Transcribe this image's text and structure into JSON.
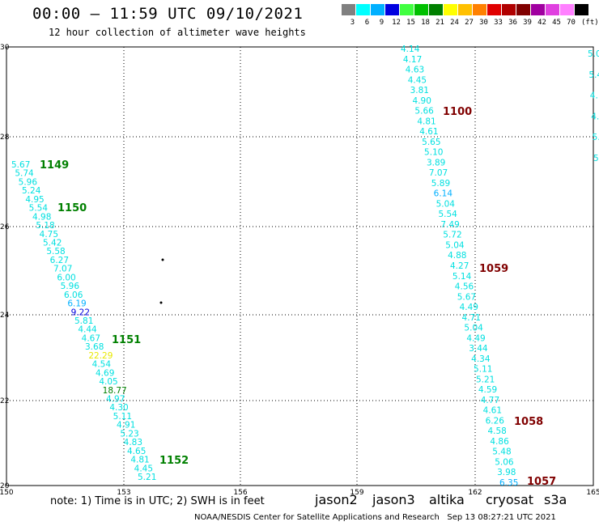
{
  "header": {
    "title": "00:00 – 11:59 UTC 09/10/2021",
    "subtitle": "12 hour collection of altimeter wave heights"
  },
  "legend": {
    "unit": "(ft)",
    "bins": [
      {
        "label": "3",
        "color": "#808080"
      },
      {
        "label": "6",
        "color": "#00ffff"
      },
      {
        "label": "9",
        "color": "#00b0ff"
      },
      {
        "label": "12",
        "color": "#0000e0"
      },
      {
        "label": "15",
        "color": "#40ff40"
      },
      {
        "label": "18",
        "color": "#00c000"
      },
      {
        "label": "21",
        "color": "#008000"
      },
      {
        "label": "24",
        "color": "#ffff00"
      },
      {
        "label": "27",
        "color": "#ffc000"
      },
      {
        "label": "30",
        "color": "#ff8000"
      },
      {
        "label": "33",
        "color": "#e00000"
      },
      {
        "label": "36",
        "color": "#b00000"
      },
      {
        "label": "39",
        "color": "#800000"
      },
      {
        "label": "42",
        "color": "#a000a0"
      },
      {
        "label": "45",
        "color": "#e040e0"
      },
      {
        "label": "70",
        "color": "#ff80ff"
      },
      {
        "label": "",
        "color": "#000000"
      }
    ]
  },
  "axes": {
    "lon_labels": [
      "150",
      "153",
      "156",
      "159",
      "162",
      "165"
    ],
    "lat_labels": [
      "30",
      "28",
      "26",
      "24",
      "22",
      "20"
    ]
  },
  "tracks": [
    {
      "name": "left",
      "values": [
        "5.67",
        "5.74",
        "5.96",
        "5.24",
        "4.95",
        "5.54",
        "4.98",
        "5.18",
        "4.75",
        "5.42",
        "5.58",
        "6.27",
        "7.07",
        "6.00",
        "5.96",
        "6.06",
        "6.19",
        "9.22",
        "5.81",
        "4.44",
        "4.67",
        "3.68",
        "22.29",
        "4.54",
        "4.69",
        "4.05",
        "18.77",
        "4.97",
        "4.30",
        "5.11",
        "4.91",
        "5.23",
        "4.83",
        "4.65",
        "4.81",
        "4.45",
        "5.21"
      ],
      "colors": [
        "#00e0e0",
        "#00e0e0",
        "#00e0e0",
        "#00e0e0",
        "#00e0e0",
        "#00e0e0",
        "#00e0e0",
        "#00e0e0",
        "#00e0e0",
        "#00e0e0",
        "#00e0e0",
        "#00e0e0",
        "#00e0e0",
        "#00e0e0",
        "#00e0e0",
        "#00e0e0",
        "#00b0ff",
        "#0000e0",
        "#00e0e0",
        "#00e0e0",
        "#00e0e0",
        "#00e0e0",
        "#e8e800",
        "#00e0e0",
        "#00e0e0",
        "#00e0e0",
        "#008000",
        "#00e0e0",
        "#00e0e0",
        "#00e0e0",
        "#00e0e0",
        "#00e0e0",
        "#00e0e0",
        "#00e0e0",
        "#00e0e0",
        "#00e0e0",
        "#00e0e0"
      ]
    },
    {
      "name": "right",
      "values": [
        "4.14",
        "4.17",
        "4.63",
        "4.45",
        "3.81",
        "4.90",
        "5.66",
        "4.81",
        "4.61",
        "5.65",
        "5.10",
        "3.89",
        "7.07",
        "5.89",
        "6.14",
        "5.04",
        "5.54",
        "7.49",
        "5.72",
        "5.04",
        "4.88",
        "4.27",
        "5.14",
        "4.56",
        "5.67",
        "4.49",
        "4.71",
        "5.04",
        "4.49",
        "3.44",
        "4.34",
        "5.11",
        "5.21",
        "4.59",
        "4.77",
        "4.61",
        "6.26",
        "4.58",
        "4.86",
        "5.48",
        "5.06",
        "3.98",
        "6.35"
      ],
      "colors": [
        "#00e0e0",
        "#00e0e0",
        "#00e0e0",
        "#00e0e0",
        "#00e0e0",
        "#00e0e0",
        "#00e0e0",
        "#00e0e0",
        "#00e0e0",
        "#00e0e0",
        "#00e0e0",
        "#00e0e0",
        "#00e0e0",
        "#00e0e0",
        "#00b0ff",
        "#00e0e0",
        "#00e0e0",
        "#00e0e0",
        "#00e0e0",
        "#00e0e0",
        "#00e0e0",
        "#00e0e0",
        "#00e0e0",
        "#00e0e0",
        "#00e0e0",
        "#00e0e0",
        "#00e0e0",
        "#00e0e0",
        "#00e0e0",
        "#00e0e0",
        "#00e0e0",
        "#00e0e0",
        "#00e0e0",
        "#00e0e0",
        "#00e0e0",
        "#00e0e0",
        "#00e0e0",
        "#00e0e0",
        "#00e0e0",
        "#00e0e0",
        "#00e0e0",
        "#00e0e0",
        "#00b0ff"
      ]
    },
    {
      "name": "edge",
      "values": [
        "5.0",
        "5.4",
        "4.",
        "4.",
        "5.",
        "5"
      ],
      "colors": [
        "#00e0e0",
        "#00e0e0",
        "#00e0e0",
        "#00e0e0",
        "#00e0e0",
        "#00e0e0"
      ]
    }
  ],
  "time_labels": [
    {
      "text": "1149",
      "color": "#008000"
    },
    {
      "text": "1150",
      "color": "#008000"
    },
    {
      "text": "1151",
      "color": "#008000"
    },
    {
      "text": "1152",
      "color": "#008000"
    },
    {
      "text": "1100",
      "color": "#800000"
    },
    {
      "text": "1059",
      "color": "#800000"
    },
    {
      "text": "1058",
      "color": "#800000"
    },
    {
      "text": "1057",
      "color": "#800000"
    }
  ],
  "footer": {
    "note": "note: 1) Time is in UTC; 2) SWH is in feet",
    "satellites": [
      {
        "name": "jason2",
        "color": "#0000e0"
      },
      {
        "name": "jason3",
        "color": "#00a000"
      },
      {
        "name": "altika",
        "color": "#ff9000"
      },
      {
        "name": "cryosat",
        "color": "#e00000"
      },
      {
        "name": "s3a",
        "color": "#800000"
      }
    ],
    "credit": "NOAA/NESDIS Center for Satellite Applications and Research",
    "timestamp": "Sep 13 08:27:21 UTC 2021"
  }
}
